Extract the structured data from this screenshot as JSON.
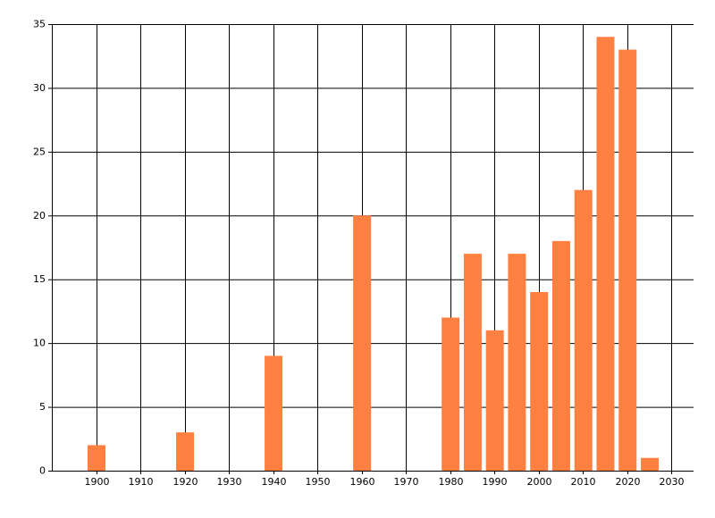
{
  "chart_data": {
    "type": "bar",
    "x": [
      1900,
      1920,
      1940,
      1960,
      1980,
      1985,
      1990,
      1995,
      2000,
      2005,
      2010,
      2015,
      2020,
      2025
    ],
    "values": [
      2,
      3,
      9,
      20,
      12,
      17,
      11,
      17,
      14,
      18,
      22,
      34,
      33,
      1
    ],
    "color": "#ff8040",
    "xlim": [
      1890,
      2035
    ],
    "xticks": [
      1900,
      1910,
      1920,
      1930,
      1940,
      1950,
      1960,
      1970,
      1980,
      1990,
      2000,
      2010,
      2020,
      2030
    ],
    "ylim": [
      0,
      35
    ],
    "yticks": [
      0,
      5,
      10,
      15,
      20,
      25,
      30,
      35
    ],
    "grid": true
  }
}
